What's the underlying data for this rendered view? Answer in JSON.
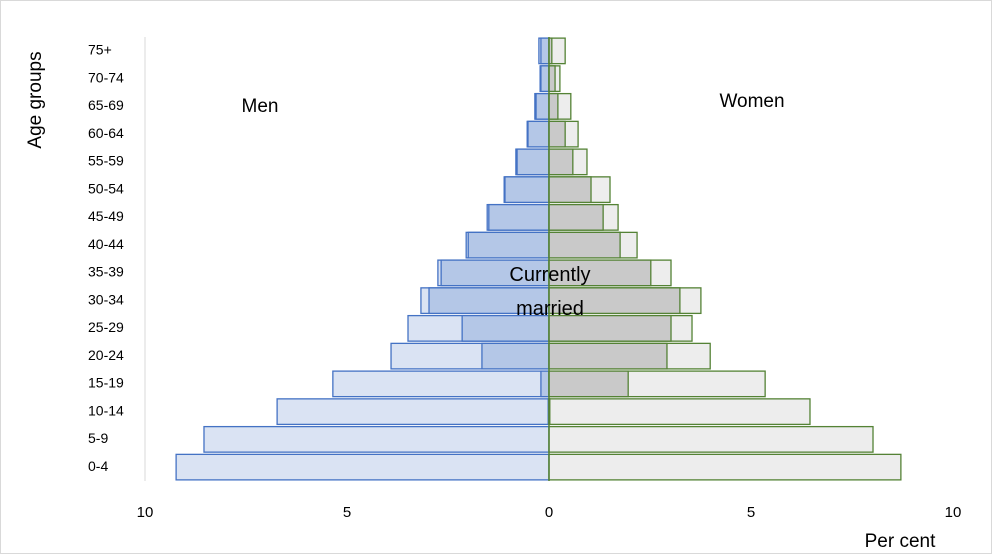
{
  "chart_data": {
    "type": "pyramid",
    "y_label": "Age groups",
    "x_label": "Per cent",
    "annotations": [
      "Men",
      "Women",
      "Currently married"
    ],
    "categories": [
      "0-4",
      "5-9",
      "10-14",
      "15-19",
      "20-24",
      "25-29",
      "30-34",
      "35-39",
      "40-44",
      "45-49",
      "50-54",
      "55-59",
      "60-64",
      "65-69",
      "70-74",
      "75+"
    ],
    "series": [
      {
        "color": "#dae3f3",
        "stroke": "#4472c4",
        "values": [
          -9.23,
          -8.54,
          -6.73,
          -5.35,
          -3.91,
          -3.49,
          -3.17,
          -2.75,
          -2.05,
          -1.53,
          -1.11,
          -0.82,
          -0.54,
          -0.35,
          -0.22,
          -0.25
        ]
      },
      {
        "color": "#b4c7e7",
        "stroke": "#4472c4",
        "values": [
          0,
          0,
          -0.02,
          -0.2,
          -1.66,
          -2.15,
          -2.97,
          -2.67,
          -2.0,
          -1.49,
          -1.09,
          -0.79,
          -0.52,
          -0.32,
          -0.2,
          -0.2
        ]
      },
      {
        "color": "#ededed",
        "stroke": "#548235",
        "values": [
          8.71,
          8.02,
          6.46,
          5.35,
          3.99,
          3.54,
          3.76,
          3.02,
          2.18,
          1.71,
          1.51,
          0.94,
          0.72,
          0.54,
          0.27,
          0.4
        ]
      },
      {
        "color": "#c9c9c9",
        "stroke": "#548235",
        "values": [
          0,
          0,
          0.02,
          1.96,
          2.92,
          3.02,
          3.24,
          2.52,
          1.76,
          1.34,
          1.04,
          0.59,
          0.4,
          0.22,
          0.15,
          0.07
        ]
      }
    ],
    "xlim": [
      -10,
      10
    ],
    "xticks": [
      {
        "value": -10,
        "label": "10"
      },
      {
        "value": -5,
        "label": "5"
      },
      0,
      5,
      10
    ]
  }
}
